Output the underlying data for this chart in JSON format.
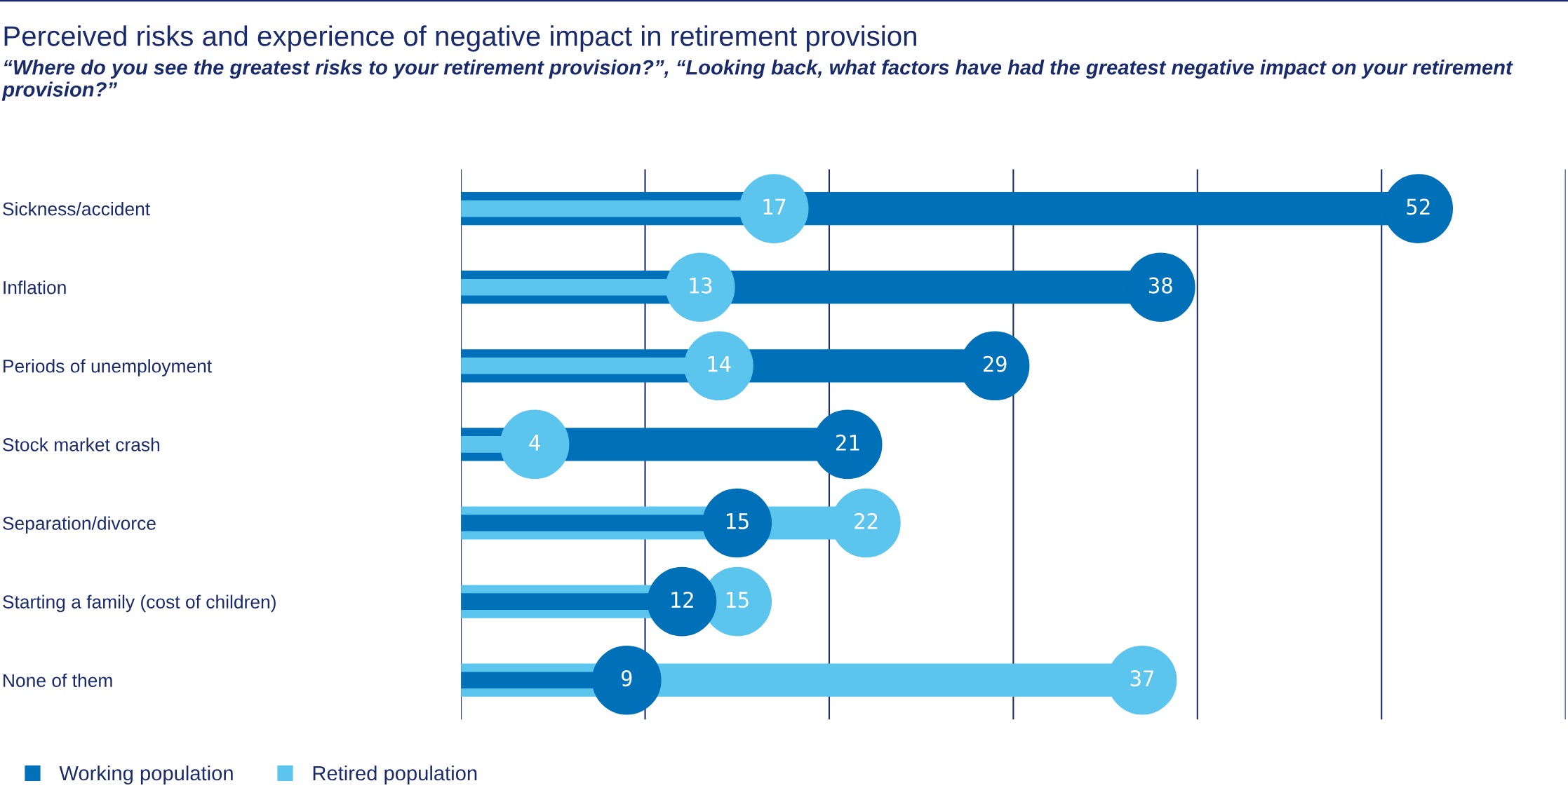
{
  "chart_data": {
    "type": "lollipop",
    "orientation": "horizontal",
    "title": "Perceived risks and experience of negative impact in retirement provision",
    "subtitle": "“Where do you see the greatest risks to your retirement provision?”, “Looking back, what factors have had the greatest negative impact on your retirement provision?”",
    "categories": [
      "Sickness/accident",
      "Inflation",
      "Periods of unemployment",
      "Stock market crash",
      "Separation/divorce",
      "Starting a family (cost of children)",
      "None of them"
    ],
    "series": [
      {
        "name": "Working population",
        "color": "#0070b8",
        "values": [
          52,
          38,
          29,
          21,
          15,
          12,
          9
        ]
      },
      {
        "name": "Retired population",
        "color": "#5bc5ee",
        "values": [
          17,
          13,
          14,
          4,
          22,
          15,
          37
        ]
      }
    ],
    "xlim": [
      0,
      60
    ],
    "xticks": [
      {
        "value": 0,
        "label": null
      },
      {
        "value": 10,
        "label": null
      },
      {
        "value": 20,
        "label": null
      },
      {
        "value": 30,
        "label": null
      },
      {
        "value": 40,
        "label": null
      },
      {
        "value": 50,
        "label": null
      },
      {
        "value": 60,
        "label": null
      }
    ],
    "grid": "x",
    "legend": "bottom left",
    "data_labels": true,
    "tick_labels": "y",
    "marker": "circle"
  }
}
